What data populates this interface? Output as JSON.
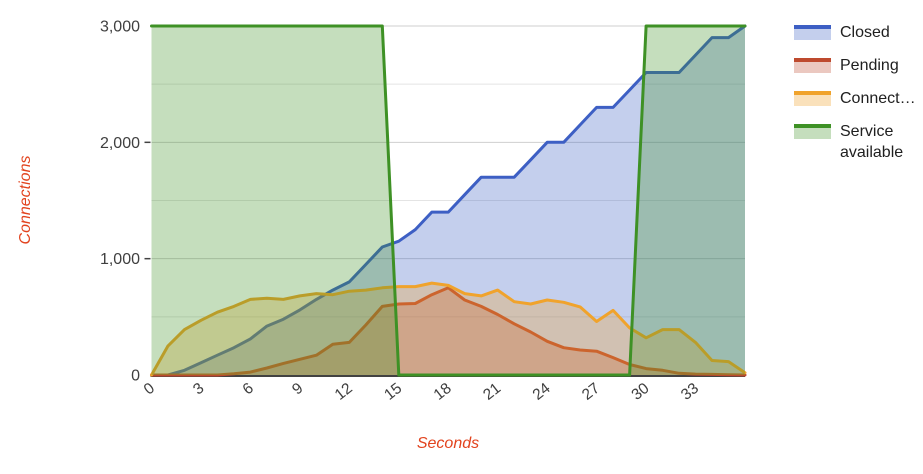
{
  "legend": {
    "items": [
      {
        "label": "Closed",
        "color": "#3d5fc4",
        "fill": "rgba(61,95,196,0.30)"
      },
      {
        "label": "Pending",
        "color": "#be4a2e",
        "fill": "rgba(190,74,46,0.30)"
      },
      {
        "label": "Connect…",
        "color": "#f0a32c",
        "fill": "rgba(240,163,44,0.32)"
      },
      {
        "label": "Service available",
        "color": "#3e9125",
        "fill": "rgba(62,145,37,0.30)"
      }
    ]
  },
  "chart_data": {
    "type": "area",
    "title": "",
    "xlabel": "Seconds",
    "ylabel": "Connections",
    "xlim": [
      0,
      36
    ],
    "ylim": [
      0,
      3000
    ],
    "xticks": [
      0,
      3,
      6,
      9,
      12,
      15,
      18,
      21,
      24,
      27,
      30,
      33
    ],
    "yticks": [
      {
        "value": 0,
        "label": "0"
      },
      {
        "value": 1000,
        "label": "1,000"
      },
      {
        "value": 2000,
        "label": "2,000"
      },
      {
        "value": 3000,
        "label": "3,000"
      }
    ],
    "minor_gridlines": [
      500,
      1500,
      2500
    ],
    "grid": "on",
    "legend_position": "right",
    "axis_title_color": "#e2431e",
    "tick_label_color": "#3f3f3f",
    "x": [
      0,
      1,
      2,
      3,
      4,
      5,
      6,
      7,
      8,
      9,
      10,
      11,
      12,
      13,
      14,
      15,
      16,
      17,
      18,
      19,
      20,
      21,
      22,
      23,
      24,
      25,
      26,
      27,
      28,
      29,
      30,
      31,
      32,
      33,
      34,
      35,
      36
    ],
    "series": [
      {
        "name": "Closed",
        "color": "#3d5fc4",
        "values": [
          0,
          0,
          40,
          105,
          170,
          235,
          310,
          420,
          480,
          560,
          650,
          730,
          800,
          950,
          1100,
          1150,
          1250,
          1400,
          1400,
          1550,
          1700,
          1700,
          1700,
          1850,
          2000,
          2000,
          2150,
          2300,
          2300,
          2450,
          2600,
          2600,
          2600,
          2750,
          2900,
          2900,
          3000
        ]
      },
      {
        "name": "Pending",
        "color": "#be4a2e",
        "values": [
          0,
          0,
          0,
          0,
          0,
          10,
          25,
          60,
          100,
          135,
          170,
          265,
          280,
          430,
          590,
          610,
          615,
          690,
          750,
          645,
          590,
          520,
          440,
          370,
          290,
          235,
          215,
          205,
          150,
          90,
          55,
          40,
          15,
          8,
          5,
          3,
          0
        ]
      },
      {
        "name": "Connect…",
        "color": "#f0a32c",
        "values": [
          0,
          250,
          390,
          470,
          540,
          590,
          650,
          660,
          650,
          680,
          700,
          690,
          720,
          730,
          750,
          760,
          760,
          790,
          770,
          700,
          680,
          730,
          630,
          610,
          645,
          625,
          585,
          460,
          555,
          405,
          320,
          390,
          390,
          280,
          125,
          115,
          20
        ]
      },
      {
        "name": "Service available",
        "color": "#3e9125",
        "values": [
          3000,
          3000,
          3000,
          3000,
          3000,
          3000,
          3000,
          3000,
          3000,
          3000,
          3000,
          3000,
          3000,
          3000,
          3000,
          0,
          0,
          0,
          0,
          0,
          0,
          0,
          0,
          0,
          0,
          0,
          0,
          0,
          0,
          0,
          3000,
          3000,
          3000,
          3000,
          3000,
          3000,
          3000
        ]
      }
    ]
  }
}
